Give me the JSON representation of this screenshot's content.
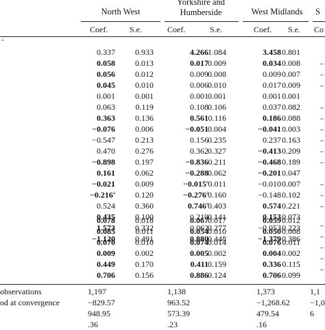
{
  "regions": [
    {
      "name": "North West"
    },
    {
      "name": "Yorkshire and\nHumberside"
    },
    {
      "name": "West Midlands"
    },
    {
      "name": "S"
    }
  ],
  "subheaders": {
    "coef": "Coef.",
    "se": "S.e.",
    "partial": "Co"
  },
  "row_marker": "-",
  "block1": [
    {
      "c1": "0.337",
      "b1": false,
      "s1": "0.933",
      "c2": "4.266",
      "b2": true,
      "s2": "1.084",
      "c3": "3.458",
      "b3": true,
      "s3": "0.801"
    },
    {
      "c1": "0.058",
      "b1": true,
      "s1": "0.013",
      "c2": "0.017",
      "b2": true,
      "s2": "0.009",
      "c3": "0.034",
      "b3": true,
      "s3": "0.008"
    },
    {
      "c1": "0.056",
      "b1": true,
      "s1": "0.012",
      "c2": "0.009",
      "b2": false,
      "s2": "0.008",
      "c3": "0.009",
      "b3": false,
      "s3": "0.007"
    },
    {
      "c1": "0.045",
      "b1": true,
      "s1": "0.010",
      "c2": "0.006",
      "b2": false,
      "s2": "0.010",
      "c3": "0.017",
      "b3": false,
      "s3": "0.009"
    },
    {
      "c1": "0.001",
      "b1": false,
      "s1": "0.001",
      "c2": "0.001",
      "b2": false,
      "s2": "0.001",
      "c3": "0.001",
      "b3": false,
      "s3": "0.001"
    },
    {
      "c1": "0.063",
      "b1": false,
      "s1": "0.119",
      "c2": "0.108",
      "b2": false,
      "s2": "0.106",
      "c3": "0.037",
      "b3": false,
      "s3": "0.082"
    },
    {
      "c1": "0.363",
      "b1": true,
      "s1": "0.136",
      "c2": "0.561",
      "b2": true,
      "s2": "0.116",
      "c3": "0.186",
      "b3": true,
      "s3": "0.088"
    },
    {
      "c1": "−0.076",
      "b1": true,
      "s1": "0.006",
      "c2": "−0.051",
      "b2": true,
      "s2": "0.004",
      "c3": "−0.041",
      "b3": true,
      "s3": "0.003"
    },
    {
      "c1": "−0.547",
      "b1": false,
      "s1": "0.213",
      "c2": "0.156",
      "b2": false,
      "s2": "0.235",
      "c3": "0.237",
      "b3": false,
      "s3": "0.163"
    },
    {
      "c1": "0.470",
      "b1": false,
      "s1": "0.276",
      "c2": "0.362",
      "b2": false,
      "s2": "0.327",
      "c3": "−0.413",
      "b3": true,
      "s3": "0.209"
    },
    {
      "c1": "−0.898",
      "b1": true,
      "s1": "0.197",
      "c2": "−0.836",
      "b2": true,
      "s2": "0.211",
      "c3": "−0.468",
      "b3": true,
      "s3": "0.189"
    },
    {
      "c1": "0.161",
      "b1": true,
      "s1": "0.062",
      "c2": "−0.288",
      "b2": true,
      "s2": "0.062",
      "c3": "−0.201",
      "b3": true,
      "s3": "0.047"
    },
    {
      "c1": "−0.021",
      "b1": true,
      "s1": "0.009",
      "c2": "−0.015",
      "b2": true,
      "a2": "a",
      "s2": "0.011",
      "c3": "−0.010",
      "b3": false,
      "s3": "0.007"
    },
    {
      "c1": "−0.216",
      "b1": true,
      "a1": "a",
      "s1": "0.120",
      "c2": "−0.276",
      "b2": true,
      "a2": "a",
      "s2": "0.160",
      "c3": "−0.148",
      "b3": false,
      "s3": "0.102"
    },
    {
      "c1": "0.524",
      "b1": false,
      "s1": "0.360",
      "c2": "0.746",
      "b2": true,
      "a2": "a",
      "s2": "0.403",
      "c3": "0.574",
      "b3": true,
      "s3": "0.221"
    },
    {
      "c1": "0.435",
      "b1": true,
      "s1": "0.100",
      "c2": "0.219",
      "b2": false,
      "s2": "0.141",
      "c3": "0.153",
      "b3": true,
      "s3": "0.073"
    },
    {
      "c1": "1.573",
      "b1": true,
      "s1": "0.332",
      "c2": "0.062",
      "b2": false,
      "s2": "0.277",
      "c3": "−0.053",
      "b3": false,
      "s3": "0.223"
    },
    {
      "c1": "−1.120",
      "b1": true,
      "s1": "0.491",
      "c2": "0.880",
      "b2": true,
      "s2": "0.448",
      "c3": "−1.379",
      "b3": true,
      "s3": "0.386"
    }
  ],
  "block2": [
    {
      "c1": "0.078",
      "b1": true,
      "s1": "0.018",
      "c2": "0.067",
      "b2": true,
      "s2": "0.017",
      "c3": "0.059",
      "b3": true,
      "s3": "0.012"
    },
    {
      "c1": "0.085",
      "b1": true,
      "s1": "0.011",
      "c2": "0.054",
      "b2": true,
      "s2": "0.010",
      "c3": "0.050",
      "b3": true,
      "s3": "0.008"
    },
    {
      "c1": "0.070",
      "b1": true,
      "s1": "0.010",
      "c2": "0.074",
      "b2": true,
      "s2": "0.014",
      "c3": "0.076",
      "b3": true,
      "s3": "0.011"
    },
    {
      "c1": "0.009",
      "b1": true,
      "s1": "0.002",
      "c2": "0.005",
      "b2": true,
      "s2": "0.002",
      "c3": "0.004",
      "b3": true,
      "s3": "0.002"
    },
    {
      "c1": "0.449",
      "b1": true,
      "s1": "0.170",
      "c2": "0.411",
      "b2": true,
      "s2": "0.159",
      "c3": "0.336",
      "b3": true,
      "s3": "0.115"
    },
    {
      "c1": "0.706",
      "b1": true,
      "s1": "0.156",
      "c2": "0.886",
      "b2": true,
      "s2": "0.124",
      "c3": "0.706",
      "b3": true,
      "s3": "0.099"
    }
  ],
  "footer": [
    {
      "label": "observations",
      "v1": "1,197",
      "v2": "1,138",
      "v3": "1,373",
      "v4": "1,1"
    },
    {
      "label": "od at convergence",
      "v1": "−829.57",
      "v2": "963.52",
      "v3": "−1,268.62",
      "v4": "−1,0"
    },
    {
      "label": "",
      "v1": "948.95",
      "v2": "573.39",
      "v3": "479.54",
      "v4": "6"
    },
    {
      "label": "",
      "v1": ".36",
      "v2": ".23",
      "v3": ".16",
      "v4": ""
    }
  ],
  "partial_col": [
    "−",
    "−",
    "−",
    "−",
    "−",
    "−",
    "−",
    "−",
    "−",
    "−",
    "−",
    "−",
    "−",
    "−",
    "−",
    "−",
    "−"
  ]
}
